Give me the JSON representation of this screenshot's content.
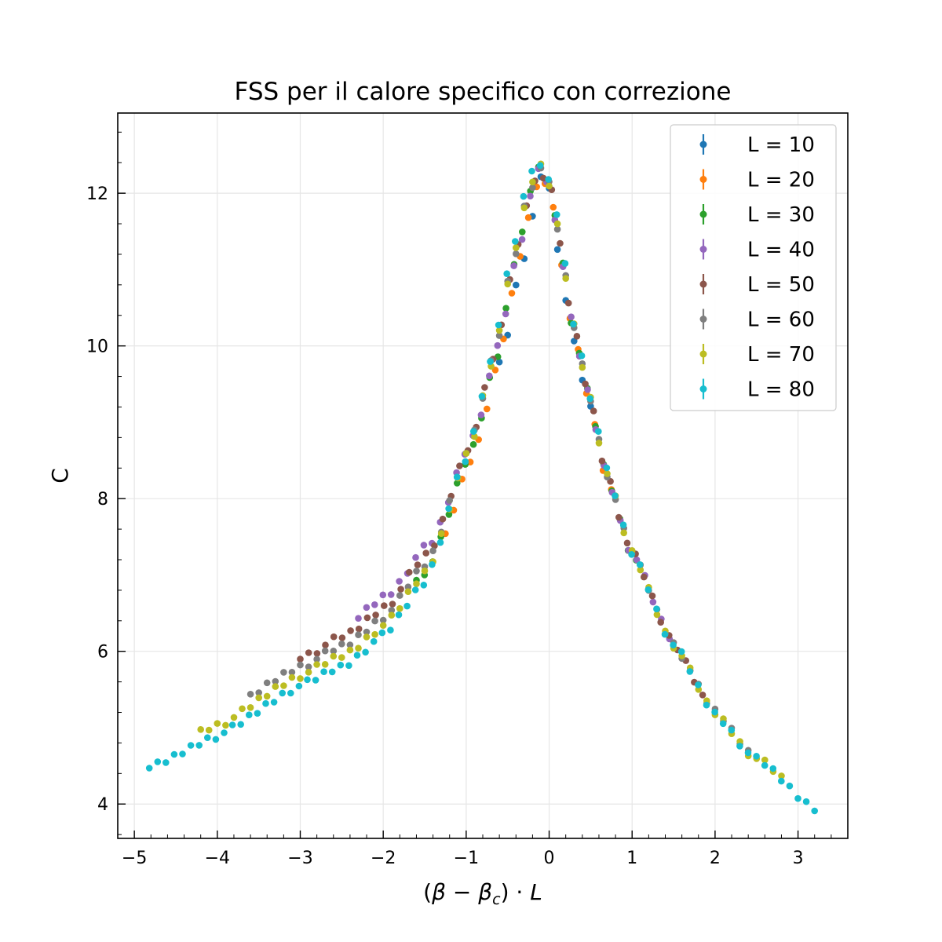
{
  "chart_data": {
    "type": "scatter",
    "title": "FSS per il calore specifico con correzione",
    "xlabel": "(β − β_c) · L",
    "ylabel": "C",
    "xlim": [
      -5.2,
      3.6
    ],
    "ylim": [
      3.55,
      13.05
    ],
    "xticks": [
      -5,
      -4,
      -3,
      -2,
      -1,
      0,
      1,
      2,
      3
    ],
    "xtick_labels": [
      "−5",
      "−4",
      "−3",
      "−2",
      "−1",
      "0",
      "1",
      "2",
      "3"
    ],
    "yticks": [
      4,
      6,
      8,
      10,
      12
    ],
    "ytick_labels": [
      "4",
      "6",
      "8",
      "10",
      "12"
    ],
    "grid": true,
    "legend_position": "top-right",
    "series": [
      {
        "name": "L = 10",
        "color": "#1f77b4",
        "x_start": -0.6,
        "x_end": 0.5,
        "offset": 0.55,
        "x_shift": -0.18
      },
      {
        "name": "L = 20",
        "color": "#ff7f0e",
        "x_start": -1.25,
        "x_end": 0.75,
        "offset": 0.0,
        "x_shift": -0.12
      },
      {
        "name": "L = 30",
        "color": "#2ca02c",
        "x_start": -1.6,
        "x_end": 1.05,
        "offset": 0.05,
        "x_shift": -0.08
      },
      {
        "name": "L = 40",
        "color": "#9467bd",
        "x_start": -2.3,
        "x_end": 1.45,
        "offset": 0.4,
        "x_shift": -0.1
      },
      {
        "name": "L = 50",
        "color": "#8c564b",
        "x_start": -3.0,
        "x_end": 1.85,
        "offset": 0.25,
        "x_shift": -0.07
      },
      {
        "name": "L = 60",
        "color": "#7f7f7f",
        "x_start": -3.6,
        "x_end": 2.4,
        "offset": 0.12,
        "x_shift": -0.05
      },
      {
        "name": "L = 70",
        "color": "#bcbd22",
        "x_start": -4.2,
        "x_end": 2.8,
        "offset": 0.0,
        "x_shift": -0.04
      },
      {
        "name": "L = 80",
        "color": "#17becf",
        "x_start": -4.82,
        "x_end": 3.2,
        "offset": -0.15,
        "x_shift": 0.0
      }
    ],
    "shape": {
      "peak_x": -0.14,
      "peak_y": 12.42,
      "anchors": [
        [
          -4.82,
          4.62
        ],
        [
          -4.0,
          5.05
        ],
        [
          -3.0,
          5.7
        ],
        [
          -2.5,
          5.95
        ],
        [
          -2.0,
          6.35
        ],
        [
          -1.5,
          7.05
        ],
        [
          -1.0,
          8.6
        ],
        [
          -0.7,
          9.85
        ],
        [
          -0.5,
          11.0
        ],
        [
          -0.3,
          12.0
        ],
        [
          -0.14,
          12.42
        ],
        [
          0.05,
          12.05
        ],
        [
          0.15,
          11.3
        ],
        [
          0.3,
          10.3
        ],
        [
          0.5,
          9.35
        ],
        [
          0.7,
          8.35
        ],
        [
          1.0,
          7.3
        ],
        [
          1.5,
          6.1
        ],
        [
          2.0,
          5.2
        ],
        [
          2.5,
          4.6
        ],
        [
          3.2,
          3.98
        ]
      ]
    }
  }
}
